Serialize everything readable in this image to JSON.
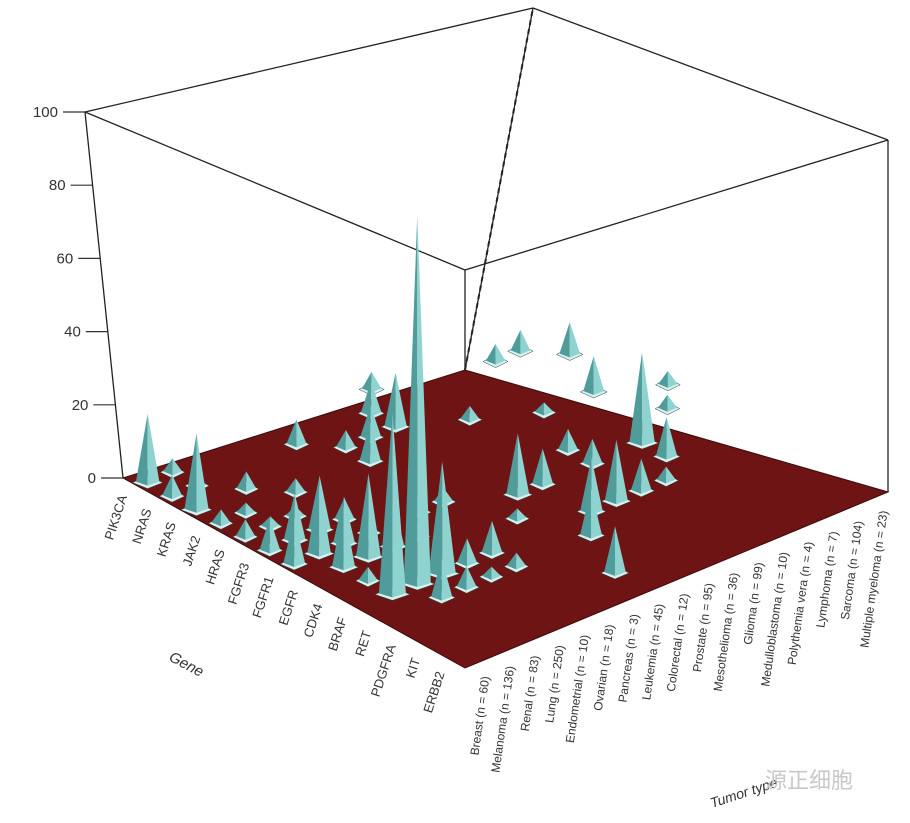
{
  "chart_data": {
    "type": "3d-bar",
    "x_axis_label": "Gene",
    "y_axis_label": "Tumor type",
    "z_ticks": [
      "0",
      "20",
      "40",
      "60",
      "80",
      "100"
    ],
    "zlim": [
      0,
      100
    ],
    "genes": [
      "PIK3CA",
      "NRAS",
      "KRAS",
      "JAK2",
      "HRAS",
      "FGFR3",
      "FGFR1",
      "EGFR",
      "CDK4",
      "BRAF",
      "RET",
      "PDGFRA",
      "KIT",
      "ERBB2"
    ],
    "tumor_types": [
      "Breast (n = 60)",
      "Melanoma (n = 136)",
      "Renal (n = 83)",
      "Lung (n = 250)",
      "Endometrial (n = 10)",
      "Ovarian (n = 18)",
      "Pancreas (n = 3)",
      "Leukemia (n = 45)",
      "Colorectal (n = 12)",
      "Prostate (n = 95)",
      "Mesothelioma (n = 36)",
      "Glioma (n = 99)",
      "Medulloblastoma (n = 10)",
      "Polythemia vera (n = 4)",
      "Lymphoma (n = 7)",
      "Sarcoma (n = 104)",
      "Multiple myeloma (n = 23)"
    ],
    "values": [
      [
        0,
        "Breast (n = 60)",
        18
      ],
      [
        1,
        "Breast (n = 60)",
        5
      ],
      [
        2,
        "Breast (n = 60)",
        20
      ],
      [
        3,
        "Breast (n = 60)",
        3
      ],
      [
        4,
        "Breast (n = 60)",
        4
      ],
      [
        5,
        "Breast (n = 60)",
        8
      ],
      [
        6,
        "Breast (n = 60)",
        12
      ],
      [
        0,
        "Melanoma (n = 136)",
        3
      ],
      [
        1,
        "Melanoma (n = 136)",
        2
      ],
      [
        3,
        "Melanoma (n = 136)",
        2
      ],
      [
        4,
        "Melanoma (n = 136)",
        2
      ],
      [
        5,
        "Melanoma (n = 136)",
        12
      ],
      [
        6,
        "Melanoma (n = 136)",
        18
      ],
      [
        7,
        "Melanoma (n = 136)",
        16
      ],
      [
        8,
        "Melanoma (n = 136)",
        3
      ],
      [
        9,
        "Melanoma (n = 136)",
        49
      ],
      [
        2,
        "Renal (n = 83)",
        4
      ],
      [
        4,
        "Renal (n = 83)",
        2
      ],
      [
        5,
        "Renal (n = 83)",
        14
      ],
      [
        6,
        "Renal (n = 83)",
        12
      ],
      [
        7,
        "Renal (n = 83)",
        22
      ],
      [
        9,
        "Renal (n = 83)",
        100
      ],
      [
        10,
        "Renal (n = 83)",
        10
      ],
      [
        3,
        "Lung (n = 250)",
        3
      ],
      [
        5,
        "Lung (n = 250)",
        5
      ],
      [
        6,
        "Lung (n = 250)",
        3
      ],
      [
        7,
        "Lung (n = 250)",
        12
      ],
      [
        9,
        "Lung (n = 250)",
        30
      ],
      [
        10,
        "Lung (n = 250)",
        5
      ],
      [
        7,
        "Endometrial (n = 10)",
        3
      ],
      [
        9,
        "Endometrial (n = 10)",
        6
      ],
      [
        10,
        "Endometrial (n = 10)",
        2
      ],
      [
        1,
        "Ovarian (n = 18)",
        6
      ],
      [
        6,
        "Ovarian (n = 18)",
        4
      ],
      [
        9,
        "Ovarian (n = 18)",
        8
      ],
      [
        10,
        "Ovarian (n = 18)",
        3
      ],
      [
        2,
        "Pancreas (n = 3)",
        4
      ],
      [
        3,
        "Pancreas (n = 3)",
        10
      ],
      [
        6,
        "Pancreas (n = 3)",
        3
      ],
      [
        2,
        "Leukemia (n = 45)",
        8
      ],
      [
        8,
        "Leukemia (n = 45)",
        2
      ],
      [
        12,
        "Leukemia (n = 45)",
        12
      ],
      [
        1,
        "Colorectal (n = 12)",
        8
      ],
      [
        2,
        "Colorectal (n = 12)",
        14
      ],
      [
        7,
        "Colorectal (n = 12)",
        16
      ],
      [
        10,
        "Colorectal (n = 12)",
        12
      ],
      [
        0,
        "Prostate (n = 95)",
        4
      ],
      [
        7,
        "Prostate (n = 95)",
        9
      ],
      [
        9,
        "Prostate (n = 95)",
        14
      ],
      [
        3,
        "Mesothelioma (n = 36)",
        3
      ],
      [
        9,
        "Mesothelioma (n = 36)",
        16
      ],
      [
        6,
        "Glioma (n = 99)",
        5
      ],
      [
        7,
        "Glioma (n = 99)",
        6
      ],
      [
        9,
        "Glioma (n = 99)",
        8
      ],
      [
        4,
        "Medulloblastoma (n = 10)",
        2
      ],
      [
        9,
        "Medulloblastoma (n = 10)",
        3
      ],
      [
        1,
        "Polythemia vera (n = 4)",
        4
      ],
      [
        7,
        "Polythemia vera (n = 4)",
        24
      ],
      [
        8,
        "Polythemia vera (n = 4)",
        10
      ],
      [
        1,
        "Lymphoma (n = 7)",
        5
      ],
      [
        4,
        "Lymphoma (n = 7)",
        9
      ],
      [
        2,
        "Sarcoma (n = 104)",
        8
      ],
      [
        6,
        "Sarcoma (n = 104)",
        3
      ],
      [
        5,
        "Multiple myeloma (n = 23)",
        3
      ]
    ],
    "colors": {
      "floor": "#6e1414",
      "spike": "#8fd3d1",
      "spike_shadow": "#4f9c9a",
      "wall_line": "#222222"
    }
  },
  "watermark": "源正细胞"
}
